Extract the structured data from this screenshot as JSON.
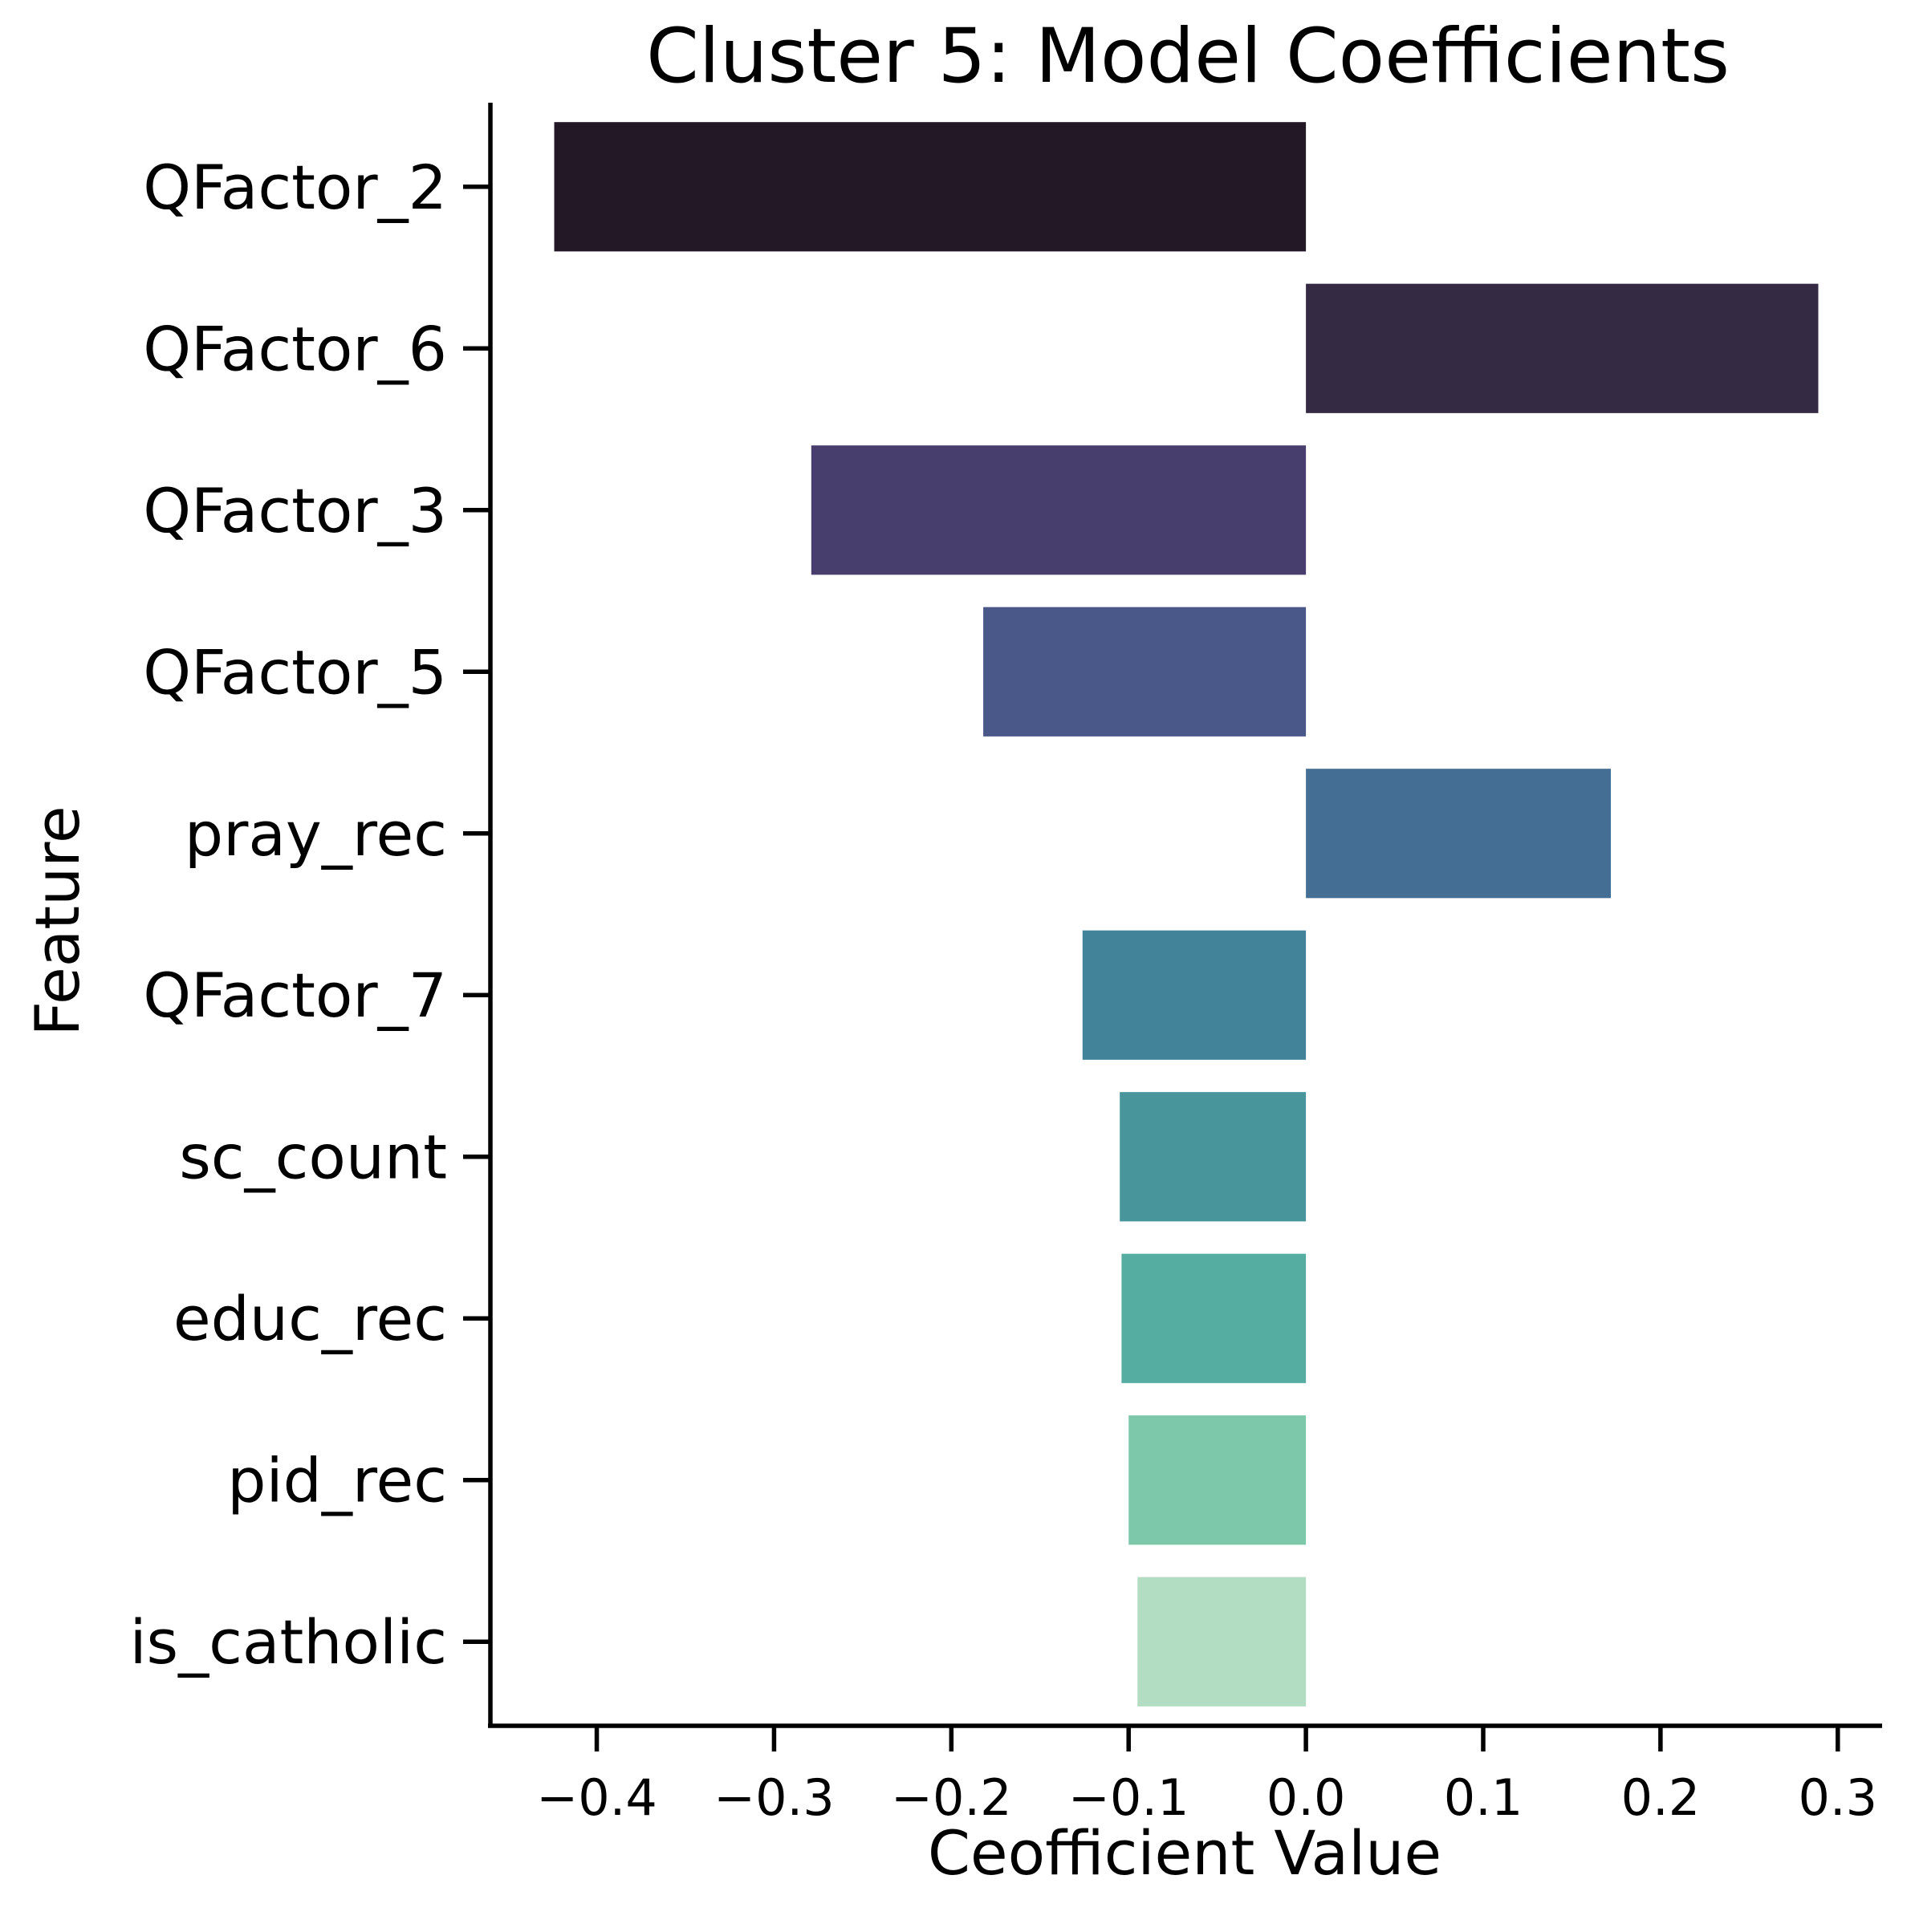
{
  "chart_data": {
    "type": "bar",
    "orientation": "horizontal",
    "title": "Cluster 5: Model Coefficients",
    "xlabel": "Ceofficient Value",
    "ylabel": "Feature",
    "categories": [
      "QFactor_2",
      "QFactor_6",
      "QFactor_3",
      "QFactor_5",
      "pray_rec",
      "QFactor_7",
      "sc_count",
      "educ_rec",
      "pid_rec",
      "is_catholic"
    ],
    "values": [
      -0.424,
      0.289,
      -0.279,
      -0.182,
      0.172,
      -0.126,
      -0.105,
      -0.104,
      -0.1,
      -0.095
    ],
    "colors": [
      "#231826",
      "#352a44",
      "#473e6d",
      "#4a5889",
      "#446e93",
      "#43839a",
      "#48969b",
      "#55ada2",
      "#7dc7aa",
      "#b3ddc3"
    ],
    "xlim": [
      -0.46,
      0.325
    ],
    "xticks": [
      -0.4,
      -0.3,
      -0.2,
      -0.1,
      0.0,
      0.1,
      0.2,
      0.3
    ],
    "xtick_labels": [
      "−0.4",
      "−0.3",
      "−0.2",
      "−0.1",
      "0.0",
      "0.1",
      "0.2",
      "0.3"
    ],
    "grid": false,
    "legend": "none"
  }
}
